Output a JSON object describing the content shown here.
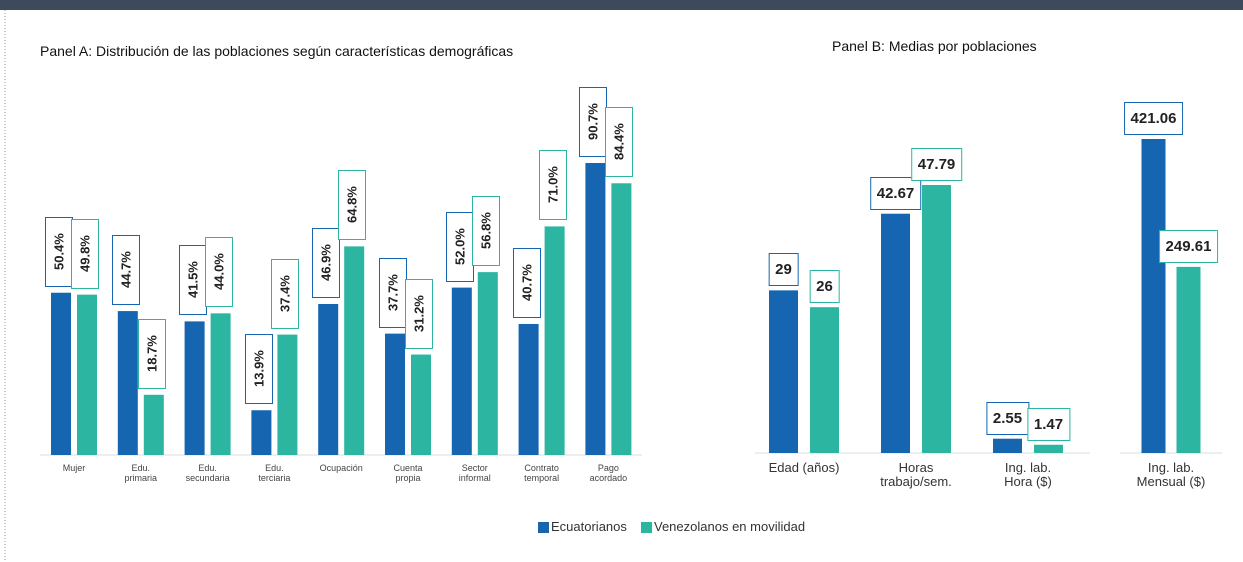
{
  "chart_data": [
    {
      "type": "bar",
      "title": "Panel A: Distribución de las poblaciones según características demográficas",
      "categories": [
        "Mujer",
        "Edu.\nprimaria",
        "Edu.\nsecundaria",
        "Edu.\nterciaria",
        "Ocupación",
        "Cuenta\npropia",
        "Sector\ninformal",
        "Contrato\ntemporal",
        "Pago\nacordado"
      ],
      "series": [
        {
          "name": "Ecuatorianos",
          "color": "#1565b0",
          "values": [
            50.4,
            44.7,
            41.5,
            13.9,
            46.9,
            37.7,
            52.0,
            40.7,
            90.7
          ],
          "value_labels": [
            "50.4%",
            "44.7%",
            "41.5%",
            "13.9%",
            "46.9%",
            "37.7%",
            "52.0%",
            "40.7%",
            "90.7%"
          ]
        },
        {
          "name": "Venezolanos en movilidad",
          "color": "#2cb5a0",
          "values": [
            49.8,
            18.7,
            44.0,
            37.4,
            64.8,
            31.2,
            56.8,
            71.0,
            84.4
          ],
          "value_labels": [
            "49.8%",
            "18.7%",
            "44.0%",
            "37.4%",
            "64.8%",
            "31.2%",
            "56.8%",
            "71.0%",
            "84.4%"
          ]
        }
      ],
      "legend": "bottom"
    },
    {
      "type": "bar",
      "title": "Panel B: Medias por poblaciones",
      "categories": [
        "Edad (años)",
        "Horas\ntrabajo/sem.",
        "Ing. lab.\nHora ($)"
      ],
      "series": [
        {
          "color": "#1565b0",
          "values": [
            29,
            42.67,
            2.55
          ]
        },
        {
          "color": "#2cb5a0",
          "values": [
            26,
            47.79,
            1.47
          ]
        }
      ]
    },
    {
      "type": "bar",
      "categories": [
        "Ing. lab.\nMensual ($)"
      ],
      "series": [
        {
          "color": "#1565b0",
          "values": [
            421.06
          ]
        },
        {
          "color": "#2cb5a0",
          "values": [
            249.61
          ]
        }
      ]
    }
  ]
}
